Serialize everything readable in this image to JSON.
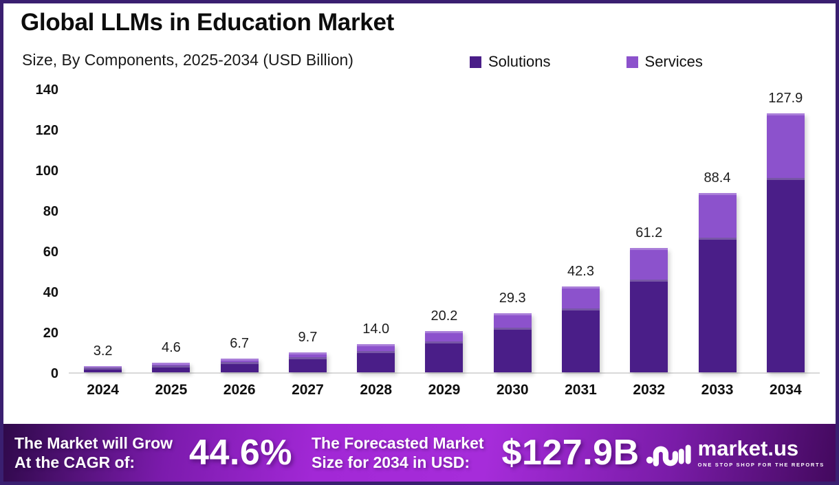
{
  "header": {
    "title": "Global LLMs in Education Market",
    "subtitle": "Size, By Components, 2025-2034 (USD Billion)"
  },
  "legend": [
    {
      "label": "Solutions",
      "color": "#4a1e88"
    },
    {
      "label": "Services",
      "color": "#8c52cc"
    }
  ],
  "chart_data": {
    "type": "bar",
    "stacked": true,
    "title": "Global LLMs in Education Market",
    "subtitle": "Size, By Components, 2025-2034 (USD Billion)",
    "xlabel": "",
    "ylabel": "",
    "categories": [
      "2024",
      "2025",
      "2026",
      "2027",
      "2028",
      "2029",
      "2030",
      "2031",
      "2032",
      "2033",
      "2034"
    ],
    "series": [
      {
        "name": "Solutions",
        "color": "#4a1e88",
        "values": [
          2.4,
          3.5,
          5.0,
          7.3,
          10.5,
          15.2,
          22.0,
          31.7,
          45.9,
          66.3,
          95.9
        ]
      },
      {
        "name": "Services",
        "color": "#8c52cc",
        "values": [
          0.8,
          1.1,
          1.7,
          2.4,
          3.5,
          5.0,
          7.3,
          10.6,
          15.3,
          22.1,
          32.0
        ]
      }
    ],
    "totals": [
      3.2,
      4.6,
      6.7,
      9.7,
      14.0,
      20.2,
      29.3,
      42.3,
      61.2,
      88.4,
      127.9
    ],
    "total_labels": [
      "3.2",
      "4.6",
      "6.7",
      "9.7",
      "14.0",
      "20.2",
      "29.3",
      "42.3",
      "61.2",
      "88.4",
      "127.9"
    ],
    "ylim": [
      0,
      140
    ],
    "yticks": [
      0,
      20,
      40,
      60,
      80,
      100,
      120,
      140
    ],
    "grid": "baseline-only",
    "legend_position": "top-right"
  },
  "footer": {
    "cagr_label_line1": "The Market will Grow",
    "cagr_label_line2": "At the CAGR of:",
    "cagr_value": "44.6%",
    "forecast_label_line1": "The Forecasted Market",
    "forecast_label_line2": "Size for 2034 in USD:",
    "forecast_value": "$127.9B",
    "brand": {
      "name": "market.us",
      "tagline": "ONE STOP SHOP FOR THE REPORTS"
    }
  },
  "colors": {
    "frame_border": "#3a1f70",
    "background": "#ffffff",
    "baseline": "#d9d9d9",
    "footer_gradient_left": "#2f094a",
    "footer_gradient_center": "#a62cda",
    "footer_gradient_right": "#43095e",
    "text": "#0d0d0d"
  }
}
